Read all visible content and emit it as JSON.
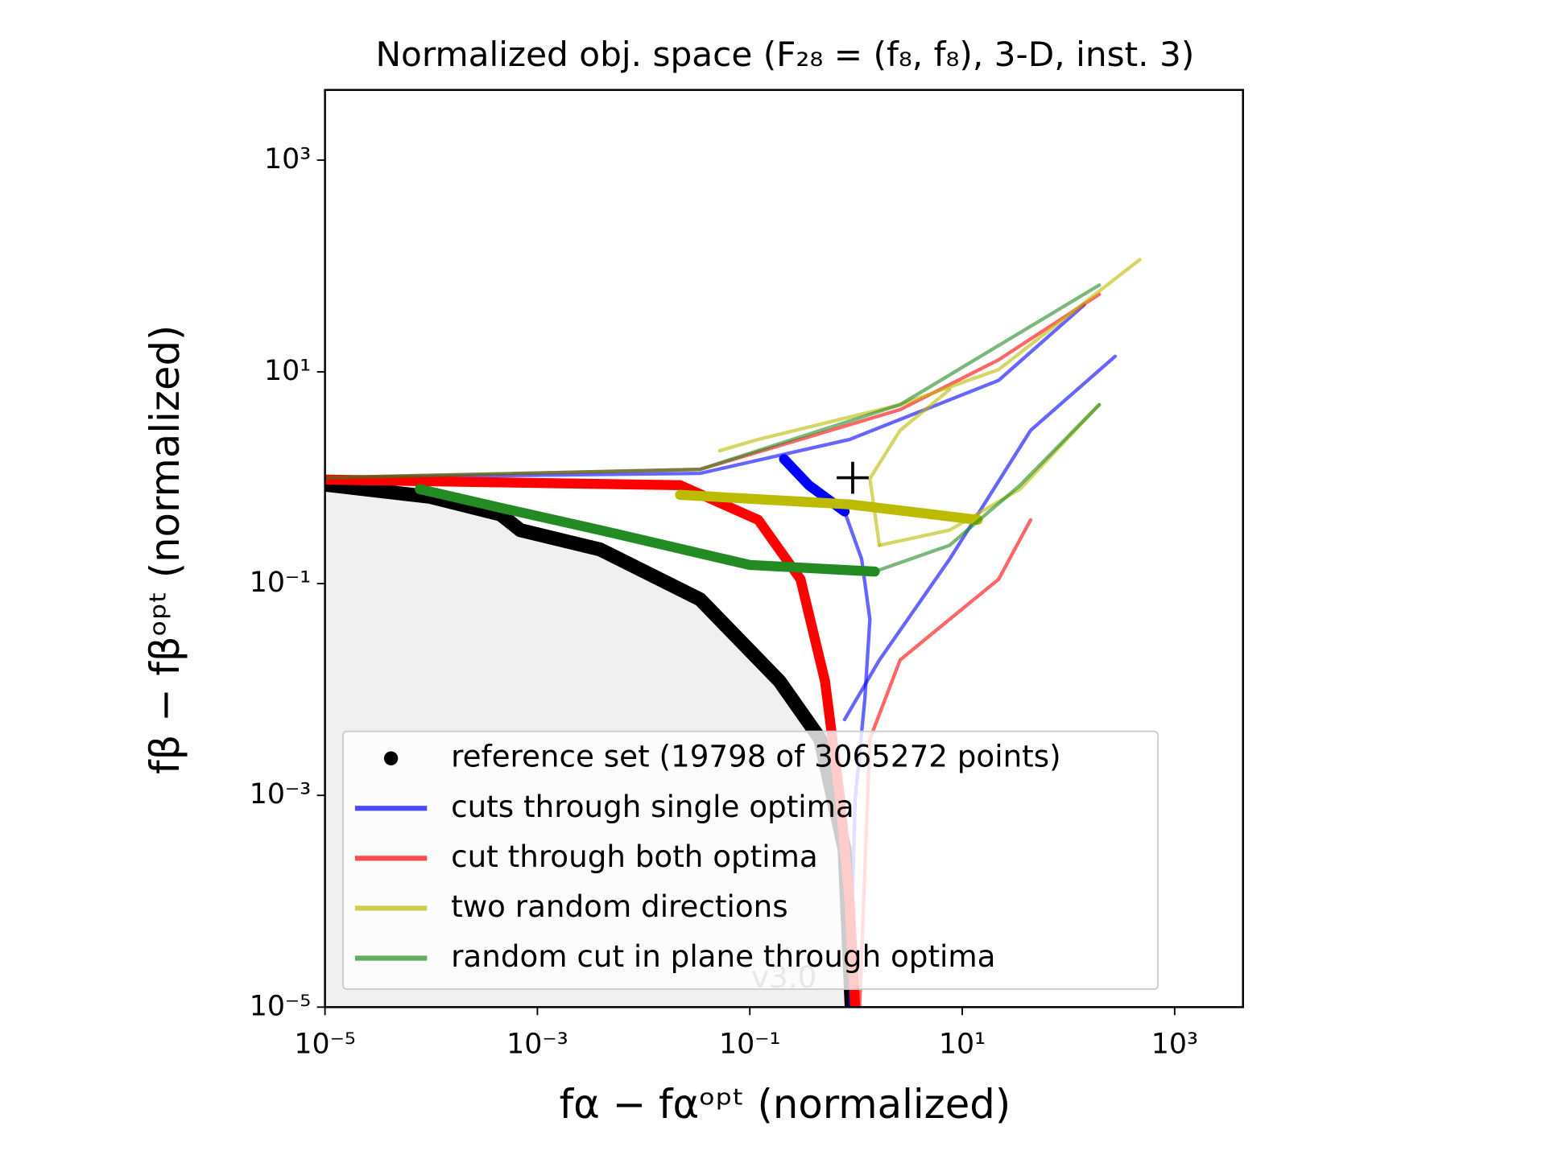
{
  "chart_data": {
    "type": "line",
    "title": "Normalized obj. space (F₂₈ = (f₈, f₈), 3-D, inst. 3)",
    "x_label": "fα − fαᵒᵖᵗ (normalized)",
    "y_label": "fβ − fβᵒᵖᵗ (normalized)",
    "log_x": true,
    "log_y": true,
    "xlim": [
      1e-05,
      4400
    ],
    "ylim": [
      1e-05,
      4600
    ],
    "xticks": [
      {
        "value": 1e-05,
        "label": "10⁻⁵"
      },
      {
        "value": 0.001,
        "label": "10⁻³"
      },
      {
        "value": 0.1,
        "label": "10⁻¹"
      },
      {
        "value": 10,
        "label": "10¹"
      },
      {
        "value": 1000,
        "label": "10³"
      }
    ],
    "yticks": [
      {
        "value": 1e-05,
        "label": "10⁻⁵"
      },
      {
        "value": 0.001,
        "label": "10⁻³"
      },
      {
        "value": 0.1,
        "label": "10⁻¹"
      },
      {
        "value": 10,
        "label": "10¹"
      },
      {
        "value": 1000,
        "label": "10³"
      }
    ],
    "legend": "lower left",
    "annotation": "v3.0",
    "optimum_marker": {
      "x": 0.93,
      "y": 1.0
    },
    "series": [
      {
        "name": "reference set (19798 of 3065272 points)",
        "color": "#000000",
        "marker": "dot",
        "curves": [
          {
            "style": "thick",
            "x": [
              1e-05,
              9.8e-05,
              0.00045,
              0.00069,
              0.0039,
              0.034,
              0.19,
              0.46,
              0.78,
              0.91
            ],
            "y": [
              0.86,
              0.66,
              0.45,
              0.32,
              0.21,
              0.071,
              0.012,
              0.0034,
              0.00031,
              1e-05
            ]
          }
        ]
      },
      {
        "name": "cuts through single optima",
        "color": "#0000ff",
        "curves": [
          {
            "style": "thick",
            "x": [
              0.21,
              0.36,
              0.78
            ],
            "y": [
              1.5,
              0.85,
              0.48
            ]
          },
          {
            "style": "thin",
            "x": [
              1e-05,
              0.034,
              0.87,
              22,
              141
            ],
            "y": [
              1.0,
              1.1,
              2.3,
              8.3,
              43
            ]
          },
          {
            "style": "thin",
            "x": [
              0.78,
              1.13,
              1.35,
              1.21,
              0.98,
              0.87
            ],
            "y": [
              0.48,
              0.17,
              0.046,
              0.0081,
              0.00091,
              1e-05
            ]
          },
          {
            "style": "thin",
            "x": [
              0.78,
              1.66,
              7.6,
              44,
              275
            ],
            "y": [
              0.0052,
              0.019,
              0.17,
              2.8,
              14
            ]
          }
        ]
      },
      {
        "name": "cut through both optima",
        "color": "#ff0000",
        "curves": [
          {
            "style": "thick",
            "x": [
              1e-05,
              0.022,
              0.12,
              0.3,
              0.51,
              0.71,
              0.87,
              0.98
            ],
            "y": [
              0.96,
              0.85,
              0.4,
              0.11,
              0.012,
              0.00091,
              0.0001,
              1e-05
            ]
          },
          {
            "style": "thin",
            "x": [
              1e-05,
              0.034,
              2.6,
              22,
              195
            ],
            "y": [
              1.0,
              1.2,
              4.4,
              13,
              54
            ]
          },
          {
            "style": "thin",
            "x": [
              1.08,
              1.35,
              2.6,
              7.6,
              22,
              44
            ],
            "y": [
              1e-05,
              0.0034,
              0.019,
              0.046,
              0.11,
              0.4
            ]
          }
        ]
      },
      {
        "name": "two random directions",
        "color": "#bbbb00",
        "curves": [
          {
            "style": "thick",
            "x": [
              0.022,
              0.87,
              14
            ],
            "y": [
              0.69,
              0.56,
              0.4
            ]
          },
          {
            "style": "thin",
            "x": [
              0.052,
              0.12,
              2.6,
              22,
              470
            ],
            "y": [
              1.8,
              2.3,
              4.9,
              10.5,
              115
            ]
          },
          {
            "style": "thin",
            "x": [
              1.66,
              1.35,
              2.6,
              7.6
            ],
            "y": [
              0.23,
              0.98,
              2.8,
              6.8
            ]
          },
          {
            "style": "thin",
            "x": [
              1.66,
              7.6,
              35,
              195
            ],
            "y": [
              0.23,
              0.32,
              0.78,
              4.9
            ]
          }
        ]
      },
      {
        "name": "random cut in plane through optima",
        "color": "#228b22",
        "curves": [
          {
            "style": "thick",
            "x": [
              7.8e-05,
              0.00045,
              0.0039,
              0.1,
              1.5
            ],
            "y": [
              0.78,
              0.52,
              0.32,
              0.15,
              0.13
            ]
          },
          {
            "style": "thin",
            "x": [
              1e-05,
              0.034,
              2.6,
              195
            ],
            "y": [
              1.0,
              1.2,
              4.9,
              66
            ]
          },
          {
            "style": "thin",
            "x": [
              1.5,
              7.6,
              35,
              195
            ],
            "y": [
              0.13,
              0.23,
              0.85,
              4.9
            ]
          }
        ]
      }
    ]
  }
}
